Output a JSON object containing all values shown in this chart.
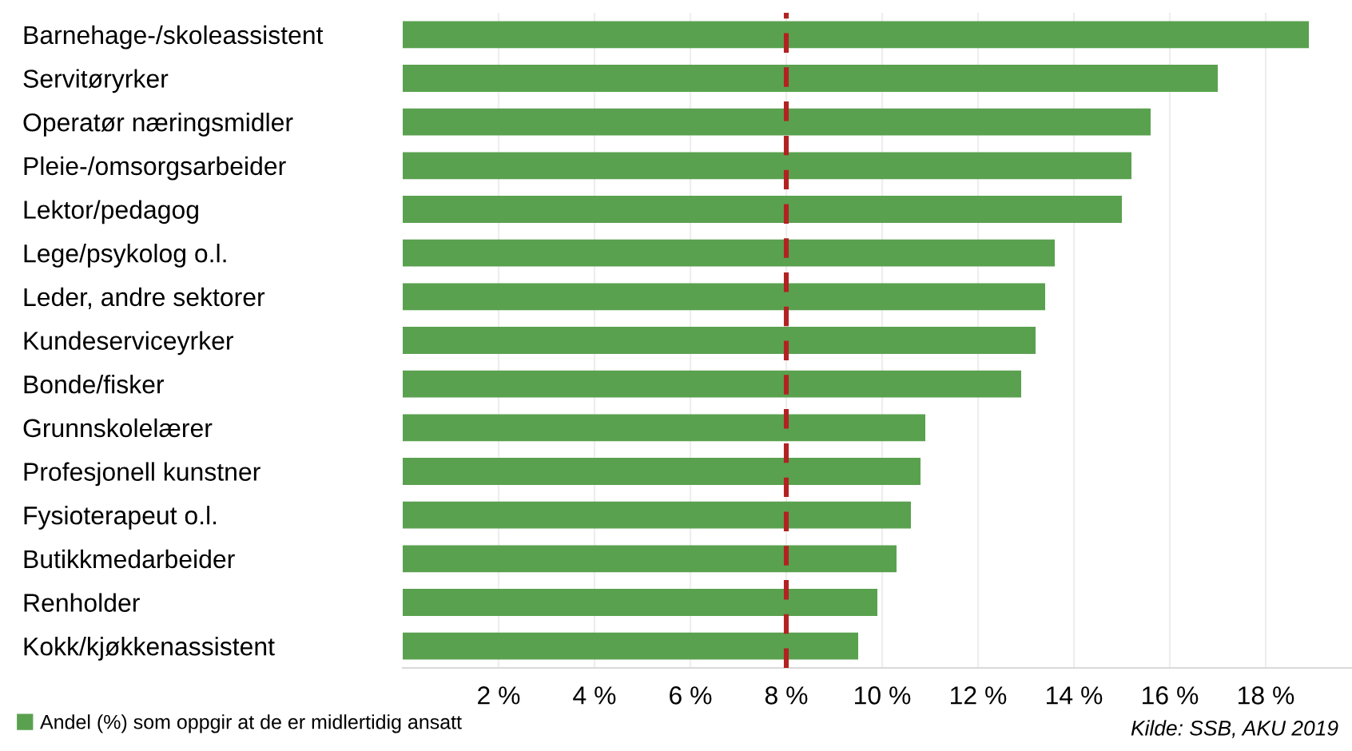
{
  "chart_data": {
    "type": "bar",
    "orientation": "horizontal",
    "categories": [
      "Barnehage-/skoleassistent",
      "Servitøryrker",
      "Operatør næringsmidler",
      "Pleie-/omsorgsarbeider",
      "Lektor/pedagog",
      "Lege/psykolog o.l.",
      "Leder, andre sektorer",
      "Kundeserviceyrker",
      "Bonde/fisker",
      "Grunnskolelærer",
      "Profesjonell kunstner",
      "Fysioterapeut o.l.",
      "Butikkmedarbeider",
      "Renholder",
      "Kokk/kjøkkenassistent"
    ],
    "series": [
      {
        "name": "Andel (%) som oppgir at de er midlertidig ansatt",
        "color": "#5aa14f",
        "values": [
          18.9,
          17.0,
          15.6,
          15.2,
          15.0,
          13.6,
          13.4,
          13.2,
          12.9,
          10.9,
          10.8,
          10.6,
          10.3,
          9.9,
          9.5
        ]
      }
    ],
    "xlim": [
      0,
      19.8
    ],
    "xticks": [
      {
        "value": 2,
        "label": "2 %"
      },
      {
        "value": 4,
        "label": "4 %"
      },
      {
        "value": 6,
        "label": "6 %"
      },
      {
        "value": 8,
        "label": "8 %"
      },
      {
        "value": 10,
        "label": "10 %"
      },
      {
        "value": 12,
        "label": "12 %"
      },
      {
        "value": 14,
        "label": "14 %"
      },
      {
        "value": 16,
        "label": "16 %"
      },
      {
        "value": 18,
        "label": "18 %"
      }
    ],
    "ref_lines": [
      {
        "axis": "x",
        "value": 8,
        "label": null,
        "color": "#b22222",
        "line_style": "dashed"
      }
    ],
    "grid": "x",
    "legend": "bottom left",
    "annotations": [
      "Kilde: SSB, AKU 2019"
    ]
  }
}
